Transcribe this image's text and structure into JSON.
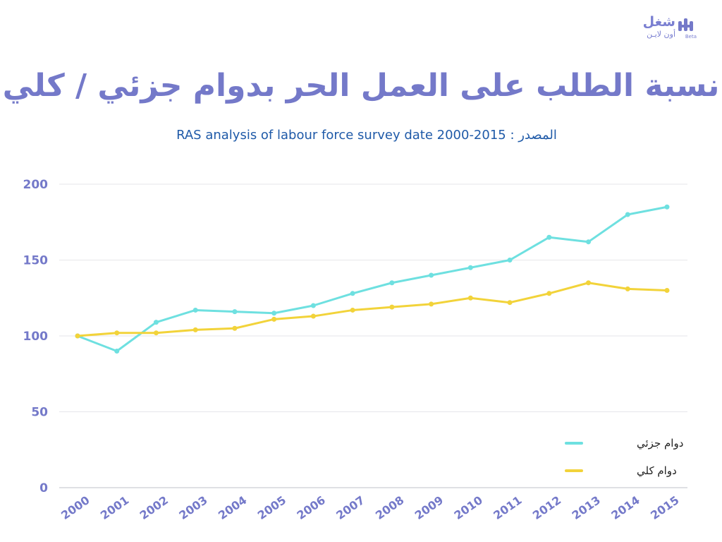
{
  "brand": {
    "name": "شغل",
    "sub": "أون لايـن",
    "tag": "Beta",
    "color": "#7479c9"
  },
  "chart_data": {
    "type": "line",
    "title": "نسبة الطلب على العمل الحر بدوام جزئي / كلي",
    "subtitle": "RAS analysis of labour force survey date 2000-2015 : المصدر",
    "x": [
      "2000",
      "2001",
      "2002",
      "2003",
      "2004",
      "2005",
      "2006",
      "2007",
      "2008",
      "2009",
      "2010",
      "2011",
      "2012",
      "2013",
      "2014",
      "2015"
    ],
    "yticks": [
      0,
      50,
      100,
      150,
      200
    ],
    "ylim": [
      0,
      200
    ],
    "grid": true,
    "legend_position": "bottom-right",
    "series": [
      {
        "name": "دوام جزئي",
        "color": "#6ee0e0",
        "values": [
          100,
          90,
          109,
          117,
          116,
          115,
          120,
          128,
          135,
          140,
          145,
          150,
          165,
          162,
          180,
          185
        ]
      },
      {
        "name": "دوام كلي",
        "color": "#f2d33a",
        "values": [
          100,
          102,
          102,
          104,
          105,
          111,
          113,
          117,
          119,
          121,
          125,
          122,
          128,
          135,
          131,
          130
        ]
      }
    ]
  }
}
